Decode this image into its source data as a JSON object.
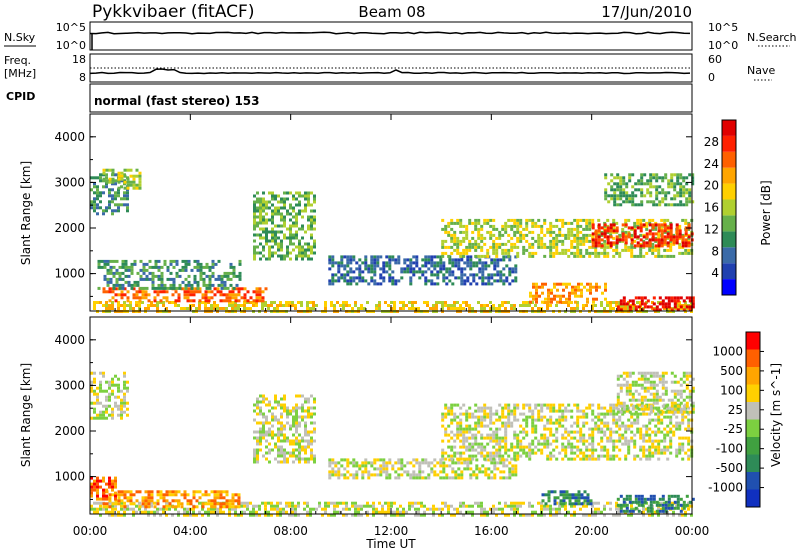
{
  "header": {
    "radar": "Pykkvibaer (fitACF)",
    "beam": "Beam 08",
    "date": "17/Jun/2010"
  },
  "labels": {
    "nsky": "N.Sky",
    "nsearch": "N.Search",
    "freq_line1": "Freq.",
    "freq_line2": "[MHz]",
    "nave": "Nave",
    "cpid": "CPID",
    "cpid_value": "normal (fast stereo) 153"
  },
  "noise_panel": {
    "left_ticks": [
      "10^5",
      "10^0"
    ],
    "right_ticks": [
      "10^5",
      "10^0"
    ]
  },
  "freq_panel": {
    "left_ticks": [
      "18",
      "8"
    ],
    "right_ticks": [
      "60",
      "0"
    ]
  },
  "chart_data": [
    {
      "type": "heatmap",
      "name": "power",
      "ylabel": "Slant Range [km]",
      "ylim": [
        180,
        4500
      ],
      "yticks": [
        "1000",
        "2000",
        "3000",
        "4000"
      ],
      "colorbar": {
        "label": "Power [dB]",
        "ticks": [
          "4",
          "8",
          "12",
          "16",
          "20",
          "24",
          "28"
        ],
        "colors": [
          "#0000ff",
          "#2040b0",
          "#3a6aa8",
          "#2e8b57",
          "#66b04a",
          "#b0d030",
          "#ffd000",
          "#ffa500",
          "#ff6000",
          "#ff2000",
          "#e00000"
        ]
      },
      "regions": [
        {
          "t": [
            0.0,
            1.5
          ],
          "r": [
            2300,
            3200
          ],
          "level": 3
        },
        {
          "t": [
            0.5,
            2.0
          ],
          "r": [
            2900,
            3300
          ],
          "level": 5
        },
        {
          "t": [
            0.0,
            24.0
          ],
          "r": [
            180,
            400
          ],
          "level": 6
        },
        {
          "t": [
            0.5,
            7.0
          ],
          "r": [
            400,
            700
          ],
          "level": 8
        },
        {
          "t": [
            0.3,
            6.0
          ],
          "r": [
            700,
            1300
          ],
          "level": 3
        },
        {
          "t": [
            6.5,
            9.0
          ],
          "r": [
            1300,
            2800
          ],
          "level": 4
        },
        {
          "t": [
            9.5,
            17.0
          ],
          "r": [
            800,
            1400
          ],
          "level": 2
        },
        {
          "t": [
            14.0,
            24.0
          ],
          "r": [
            1400,
            2200
          ],
          "level": 5
        },
        {
          "t": [
            20.0,
            24.0
          ],
          "r": [
            1600,
            2100
          ],
          "level": 9
        },
        {
          "t": [
            20.5,
            24.0
          ],
          "r": [
            2500,
            3200
          ],
          "level": 4
        },
        {
          "t": [
            17.5,
            20.5
          ],
          "r": [
            400,
            800
          ],
          "level": 7
        },
        {
          "t": [
            21.0,
            24.0
          ],
          "r": [
            180,
            500
          ],
          "level": 10
        }
      ]
    },
    {
      "type": "heatmap",
      "name": "velocity",
      "ylabel": "Slant Range [km]",
      "xlabel": "Time UT",
      "xlim": [
        0,
        24
      ],
      "xticks": [
        "00:00",
        "04:00",
        "08:00",
        "12:00",
        "16:00",
        "20:00",
        "00:00"
      ],
      "ylim": [
        180,
        4500
      ],
      "yticks": [
        "1000",
        "2000",
        "3000",
        "4000"
      ],
      "colorbar": {
        "label": "Velocity [m s^-1]",
        "ticks": [
          "1000",
          "500",
          "100",
          "25",
          "-25",
          "-100",
          "-500",
          "-1000"
        ],
        "colors": [
          "#1030c0",
          "#2050b0",
          "#2e8b57",
          "#40a040",
          "#7cd040",
          "#c0c0b8",
          "#ffd000",
          "#ffa500",
          "#ff6000",
          "#ff0000"
        ]
      },
      "regions": [
        {
          "t": [
            0.0,
            1.5
          ],
          "r": [
            2300,
            3300
          ],
          "level": 5
        },
        {
          "t": [
            0.0,
            24.0
          ],
          "r": [
            180,
            450
          ],
          "level": 5
        },
        {
          "t": [
            0.5,
            6.0
          ],
          "r": [
            350,
            700
          ],
          "level": 7
        },
        {
          "t": [
            0.0,
            1.0
          ],
          "r": [
            500,
            1000
          ],
          "level": 8
        },
        {
          "t": [
            6.5,
            9.0
          ],
          "r": [
            1300,
            2800
          ],
          "level": 5
        },
        {
          "t": [
            9.5,
            17.0
          ],
          "r": [
            1000,
            1400
          ],
          "level": 5
        },
        {
          "t": [
            14.0,
            24.0
          ],
          "r": [
            1400,
            2600
          ],
          "level": 5
        },
        {
          "t": [
            18.0,
            20.0
          ],
          "r": [
            400,
            700
          ],
          "level": 2
        },
        {
          "t": [
            21.0,
            24.0
          ],
          "r": [
            250,
            600
          ],
          "level": 2
        },
        {
          "t": [
            21.0,
            24.0
          ],
          "r": [
            2400,
            3300
          ],
          "level": 5
        }
      ]
    }
  ]
}
